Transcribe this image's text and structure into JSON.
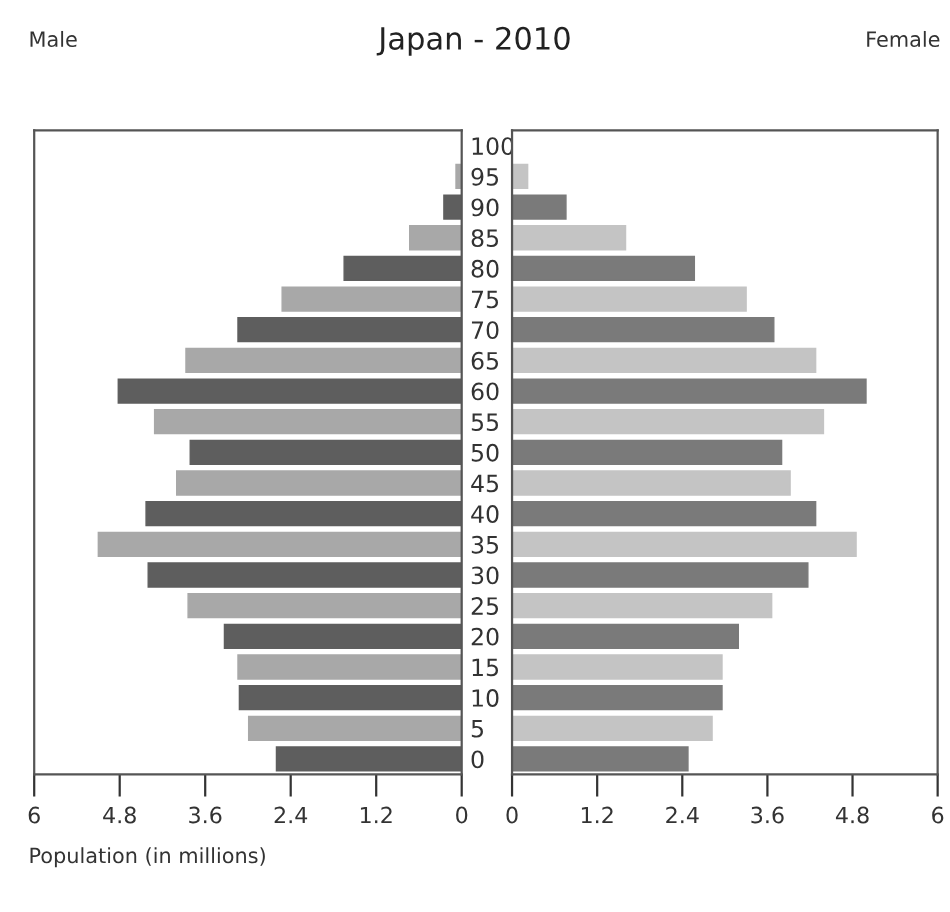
{
  "chart_data": [
    {
      "type": "bar",
      "orientation": "horizontal",
      "title": "Japan - 2010",
      "subtitle": "Male",
      "xlabel": "Population (in millions)",
      "categories": [
        "100",
        "95",
        "90",
        "85",
        "80",
        "75",
        "70",
        "65",
        "60",
        "55",
        "50",
        "45",
        "40",
        "35",
        "30",
        "25",
        "20",
        "15",
        "10",
        "5",
        "0"
      ],
      "values": [
        0.0,
        0.08,
        0.25,
        0.73,
        1.65,
        2.52,
        3.14,
        3.87,
        4.82,
        4.31,
        3.81,
        4.0,
        4.43,
        5.1,
        4.4,
        3.84,
        3.33,
        3.14,
        3.12,
        2.99,
        2.6
      ],
      "colors": [
        "#5e5e5e",
        "#a8a8a8",
        "#5e5e5e",
        "#a8a8a8",
        "#5e5e5e",
        "#a8a8a8",
        "#5e5e5e",
        "#a8a8a8",
        "#5e5e5e",
        "#a8a8a8",
        "#5e5e5e",
        "#a8a8a8",
        "#5e5e5e",
        "#a8a8a8",
        "#5e5e5e",
        "#a8a8a8",
        "#5e5e5e",
        "#a8a8a8",
        "#5e5e5e",
        "#a8a8a8",
        "#5e5e5e"
      ],
      "xlim": [
        6,
        0
      ],
      "xticks": [
        6,
        4.8,
        3.6,
        2.4,
        1.2,
        0
      ]
    },
    {
      "type": "bar",
      "orientation": "horizontal",
      "subtitle": "Female",
      "tick_labels": "x",
      "categories": [
        "100",
        "95",
        "90",
        "85",
        "80",
        "75",
        "70",
        "65",
        "60",
        "55",
        "50",
        "45",
        "40",
        "35",
        "30",
        "25",
        "20",
        "15",
        "10",
        "5",
        "0"
      ],
      "values": [
        null,
        0.22,
        0.76,
        1.6,
        2.57,
        3.3,
        3.69,
        4.28,
        4.99,
        4.39,
        3.8,
        3.92,
        4.28,
        4.85,
        4.17,
        3.66,
        3.19,
        2.96,
        2.96,
        2.82,
        2.48
      ],
      "colors": [
        "#7a7a7a",
        "#c4c4c4",
        "#7a7a7a",
        "#c4c4c4",
        "#7a7a7a",
        "#c4c4c4",
        "#7a7a7a",
        "#c4c4c4",
        "#7a7a7a",
        "#c4c4c4",
        "#7a7a7a",
        "#c4c4c4",
        "#7a7a7a",
        "#c4c4c4",
        "#7a7a7a",
        "#c4c4c4",
        "#7a7a7a",
        "#c4c4c4",
        "#7a7a7a",
        "#c4c4c4",
        "#7a7a7a"
      ],
      "xlim": [
        0,
        6
      ],
      "xticks": [
        0,
        1.2,
        2.4,
        3.6,
        4.8,
        6
      ]
    }
  ]
}
